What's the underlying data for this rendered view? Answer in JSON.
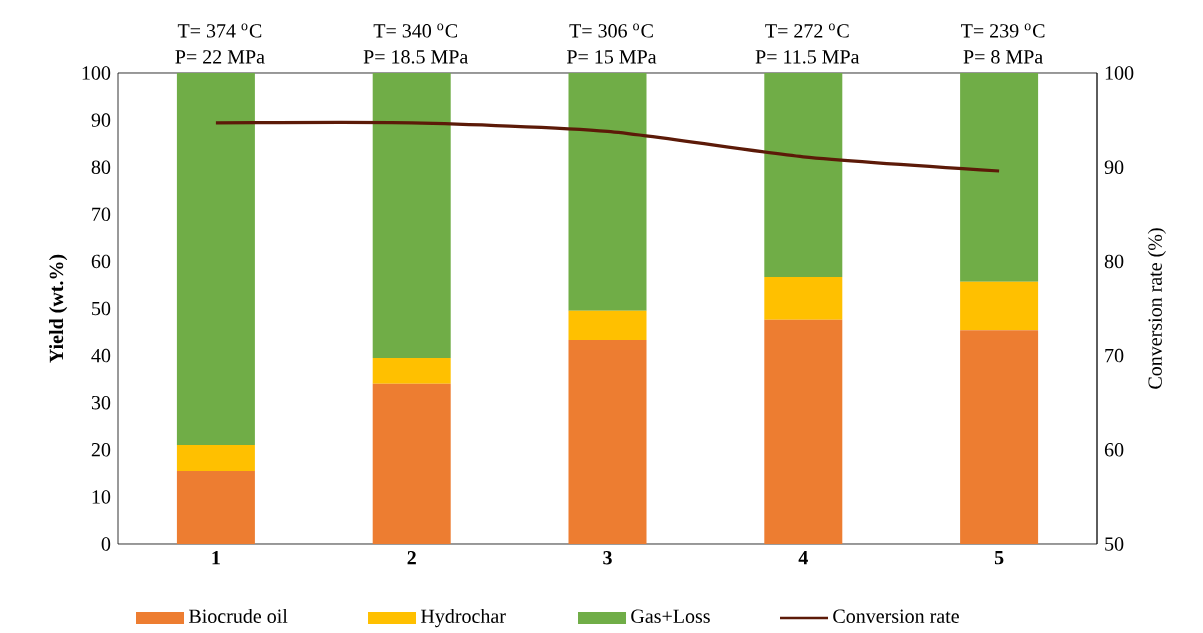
{
  "chart_data": {
    "type": "bar",
    "stacked": true,
    "categories": [
      "1",
      "2",
      "3",
      "4",
      "5"
    ],
    "series": [
      {
        "name": "Biocrude oil",
        "color": "#ed7d31",
        "values": [
          15.5,
          34.0,
          43.3,
          47.6,
          45.4
        ]
      },
      {
        "name": "Hydrochar",
        "color": "#ffc000",
        "values": [
          5.5,
          5.5,
          6.2,
          9.1,
          10.3
        ]
      },
      {
        "name": "Gas+Loss",
        "color": "#70ad47",
        "values": [
          79.0,
          60.5,
          50.5,
          43.3,
          44.3
        ]
      },
      {
        "name": "Conversion rate",
        "type": "line",
        "axis": "y2",
        "color": "#5c1a08",
        "values": [
          94.7,
          94.7,
          93.8,
          91.1,
          89.6
        ]
      }
    ],
    "ylabel": "Yield (wt.%)",
    "y2label": "Conversion rate (%)",
    "ylim": [
      0,
      100
    ],
    "yticks": [
      0,
      10,
      20,
      30,
      40,
      50,
      60,
      70,
      80,
      90,
      100
    ],
    "y2lim": [
      50,
      100
    ],
    "y2ticks": [
      50,
      60,
      70,
      80,
      90,
      100
    ],
    "legend": "bottom",
    "grid": false,
    "annotations": [
      {
        "text": "T= 374 $^{o}$C",
        "x": "1",
        "y": 100
      },
      {
        "text": "P= 22 MPa",
        "x": "1",
        "y": 100
      },
      {
        "text": "T= 340 $^{o}$C",
        "x": "2",
        "y": 100
      },
      {
        "text": "P= 18.5 MPa",
        "x": "2",
        "y": 100
      },
      {
        "text": "T= 306 $^{o}$C",
        "x": "3",
        "y": 100
      },
      {
        "text": "P= 15 MPa",
        "x": "3",
        "y": 100
      },
      {
        "text": "T= 272 $^{o}$C",
        "x": "4",
        "y": 100
      },
      {
        "text": "P= 11.5 MPa",
        "x": "4",
        "y": 100
      },
      {
        "text": "T= 239 $^{o}$C",
        "x": "5",
        "y": 100
      },
      {
        "text": "P= 8 MPa",
        "x": "5",
        "y": 100
      }
    ]
  }
}
